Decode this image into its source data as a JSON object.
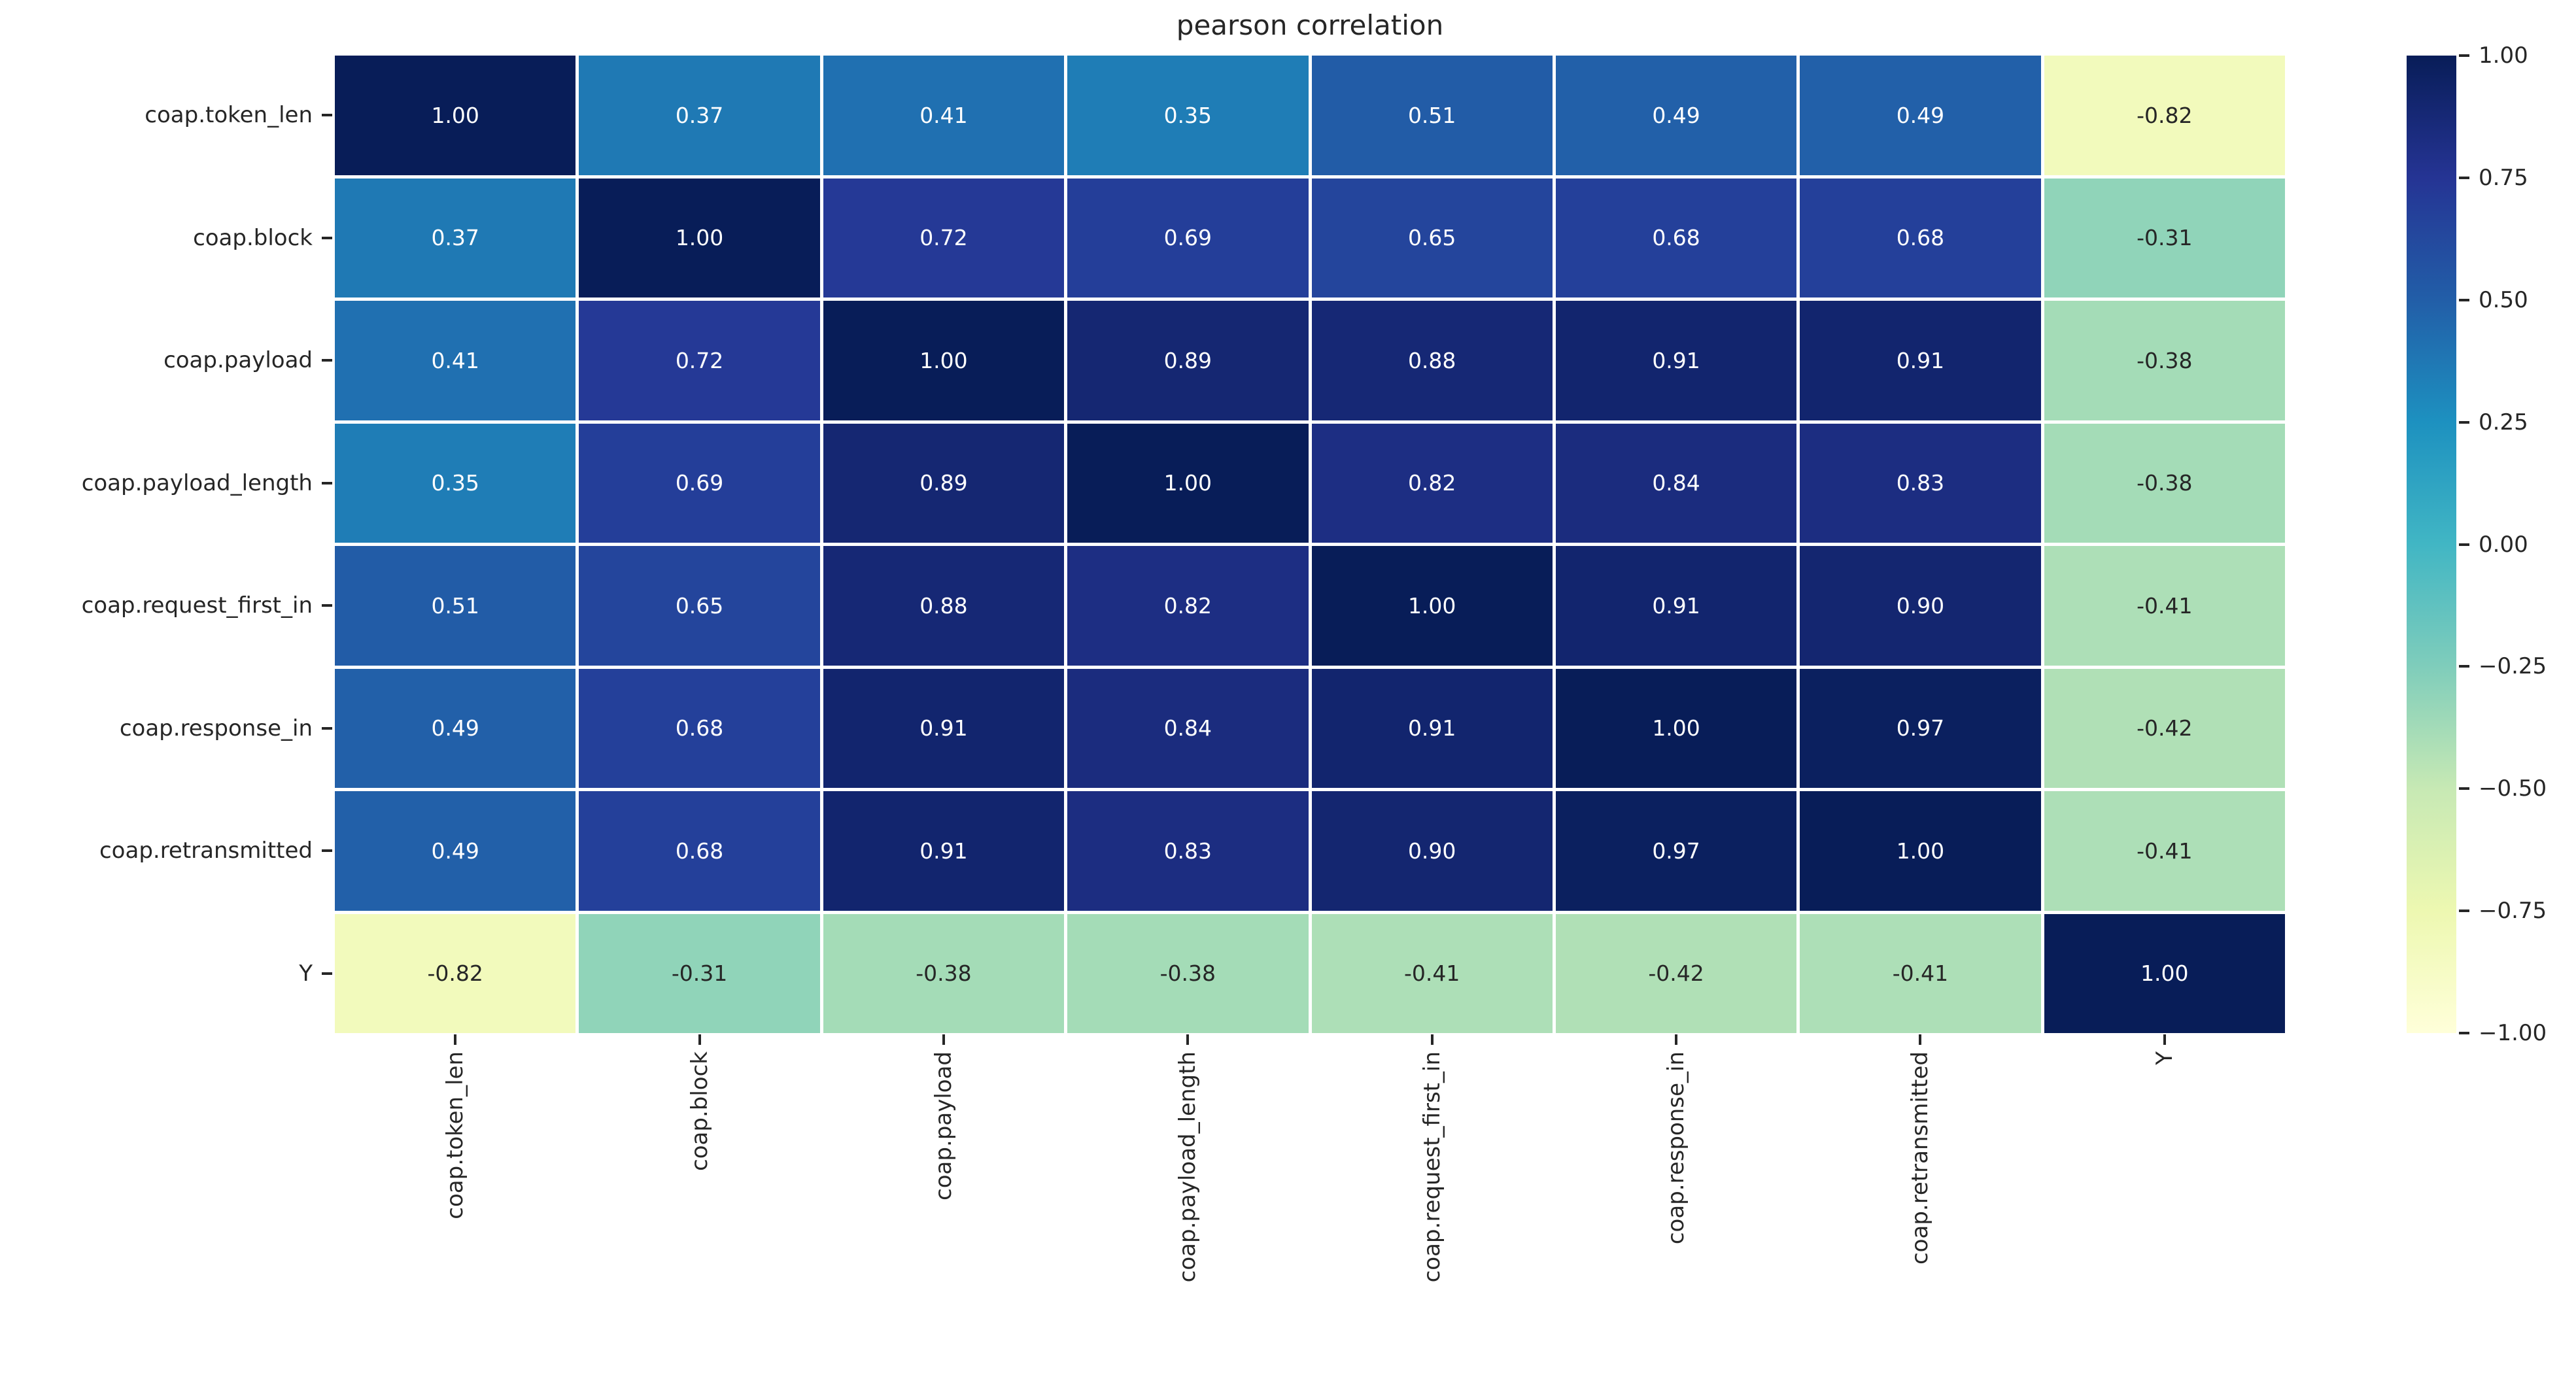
{
  "title": "pearson correlation",
  "labels": [
    "coap.token_len",
    "coap.block",
    "coap.payload",
    "coap.payload_length",
    "coap.request_first_in",
    "coap.response_in",
    "coap.retransmitted",
    "Y"
  ],
  "chart_data": {
    "type": "heatmap",
    "title": "pearson correlation",
    "x_categories": [
      "coap.token_len",
      "coap.block",
      "coap.payload",
      "coap.payload_length",
      "coap.request_first_in",
      "coap.response_in",
      "coap.retransmitted",
      "Y"
    ],
    "y_categories": [
      "coap.token_len",
      "coap.block",
      "coap.payload",
      "coap.payload_length",
      "coap.request_first_in",
      "coap.response_in",
      "coap.retransmitted",
      "Y"
    ],
    "matrix": [
      [
        1.0,
        0.37,
        0.41,
        0.35,
        0.51,
        0.49,
        0.49,
        -0.82
      ],
      [
        0.37,
        1.0,
        0.72,
        0.69,
        0.65,
        0.68,
        0.68,
        -0.31
      ],
      [
        0.41,
        0.72,
        1.0,
        0.89,
        0.88,
        0.91,
        0.91,
        -0.38
      ],
      [
        0.35,
        0.69,
        0.89,
        1.0,
        0.82,
        0.84,
        0.83,
        -0.38
      ],
      [
        0.51,
        0.65,
        0.88,
        0.82,
        1.0,
        0.91,
        0.9,
        -0.41
      ],
      [
        0.49,
        0.68,
        0.91,
        0.84,
        0.91,
        1.0,
        0.97,
        -0.42
      ],
      [
        0.49,
        0.68,
        0.91,
        0.83,
        0.9,
        0.97,
        1.0,
        -0.41
      ],
      [
        -0.82,
        -0.31,
        -0.38,
        -0.38,
        -0.41,
        -0.42,
        -0.41,
        1.0
      ]
    ],
    "vmin": -1.0,
    "vmax": 1.0,
    "annotation_decimals": 2,
    "colormap": "YlGnBu",
    "colormap_stops": [
      "#ffffd9",
      "#edf8b1",
      "#c7e9b4",
      "#7fcdbb",
      "#41b6c4",
      "#1d91c0",
      "#225ea8",
      "#253494",
      "#081d58"
    ],
    "colorbar_ticks": [
      "1.00",
      "0.75",
      "0.50",
      "0.25",
      "0.00",
      "−0.25",
      "−0.50",
      "−0.75",
      "−1.00"
    ],
    "legend_position": "right-colorbar",
    "grid": false,
    "gridline_color": "#ffffff"
  },
  "colors": {
    "background": "#ffffff",
    "axis_text": "#262626",
    "annotation_light": "#ffffff",
    "annotation_dark": "#262626",
    "tick_mark": "#262626"
  }
}
